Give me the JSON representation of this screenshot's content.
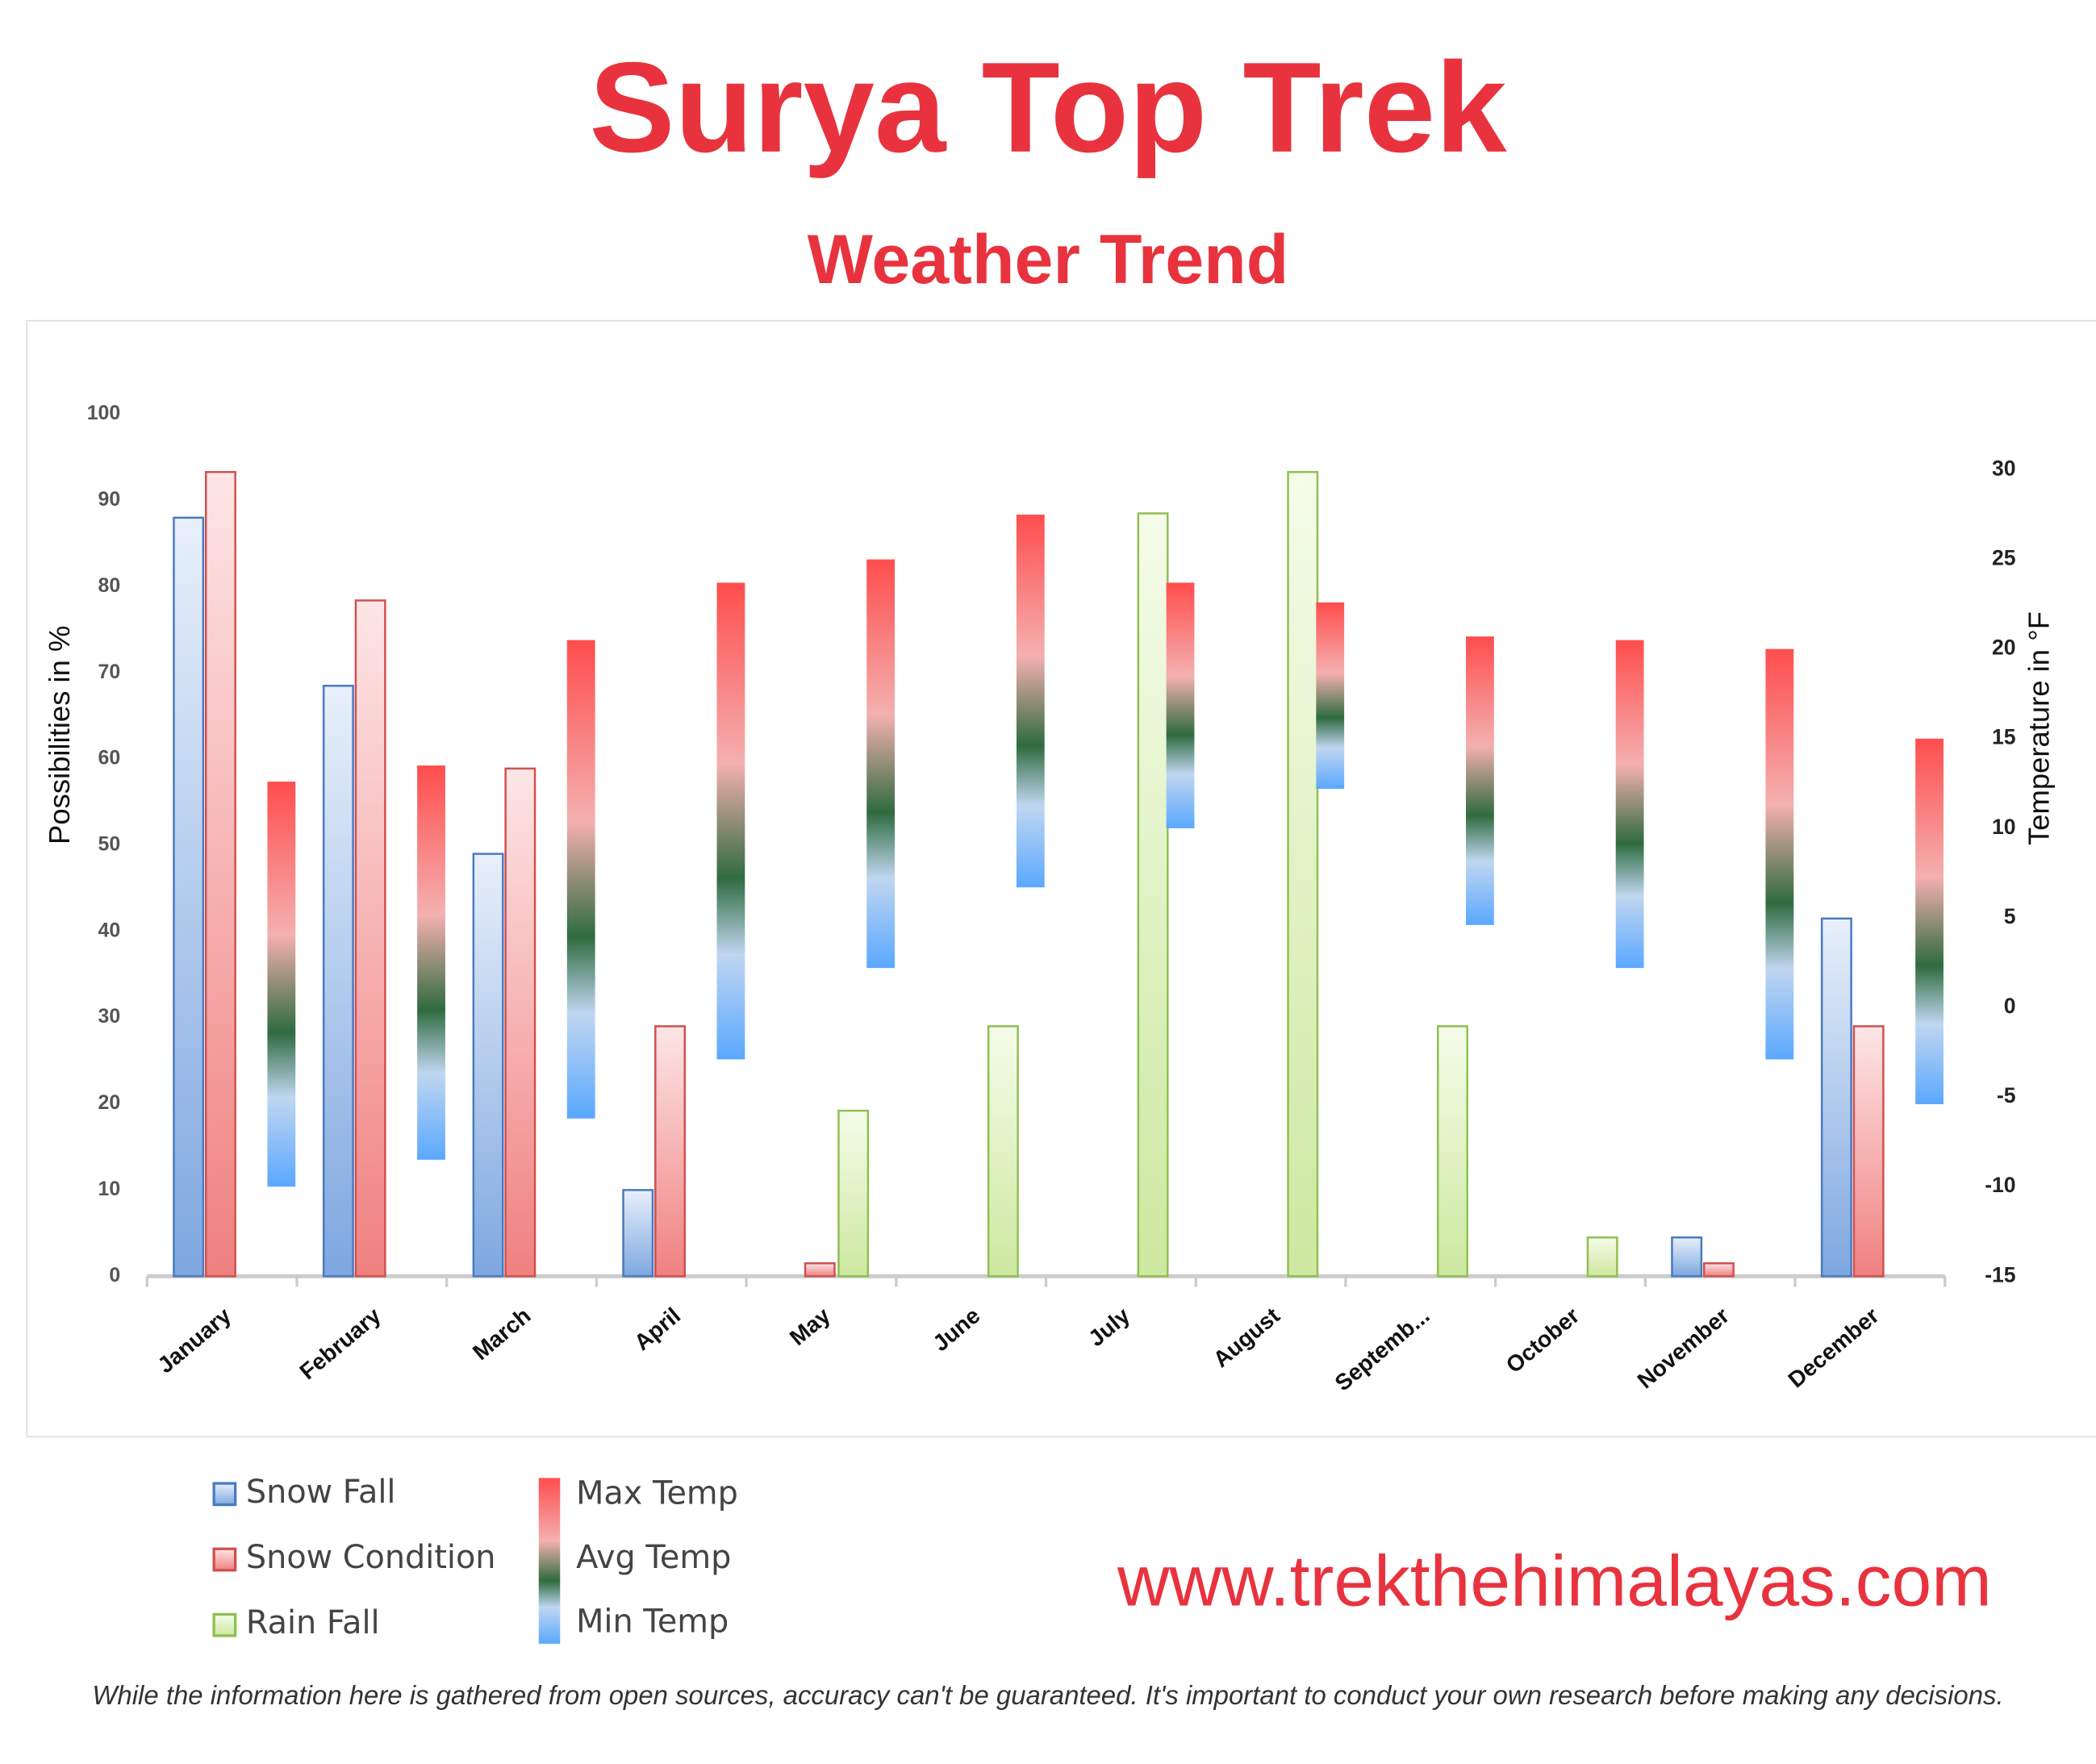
{
  "chart_data": {
    "type": "bar",
    "title": "Surya Top Trek",
    "subtitle": "Weather Trend",
    "y_label": "Possibilities in %",
    "y2_label": "Temperature in °F",
    "categories": [
      "January",
      "February",
      "March",
      "April",
      "May",
      "June",
      "July",
      "August",
      "Septemb...",
      "October",
      "November",
      "December"
    ],
    "series": [
      {
        "name": "Snow Fall",
        "color": "#4a7ac0",
        "values": [
          88,
          68.5,
          49,
          10,
          0,
          0,
          0,
          0,
          0,
          0,
          4.5,
          41.5
        ]
      },
      {
        "name": "Snow Condition",
        "color": "#d05050",
        "values": [
          93.3,
          78.4,
          58.9,
          29,
          1.5,
          0,
          0,
          0,
          0,
          0,
          1.5,
          29
        ]
      },
      {
        "name": "Rain Fall",
        "color": "#8fc050",
        "values": [
          0,
          0,
          0,
          0,
          19.2,
          29,
          88.5,
          93.3,
          29,
          4.5,
          0,
          0
        ]
      }
    ],
    "temperature_range": {
      "names": [
        "Max Temp",
        "Avg Temp",
        "Min Temp"
      ],
      "axis": "y2",
      "colors": [
        "#ff4d4d",
        "#2f6b3f",
        "#5aa8ff"
      ],
      "max": [
        12.6,
        13.5,
        20.5,
        23.7,
        25,
        27.5,
        23.7,
        22.6,
        20.7,
        20.5,
        20,
        15
      ],
      "min": [
        -10,
        -8.5,
        -6.2,
        -2.9,
        2.2,
        6.7,
        10,
        12.2,
        4.6,
        2.2,
        -2.9,
        -5.4
      ]
    },
    "ylim": [
      0,
      100
    ],
    "yticks": [
      0,
      10,
      20,
      30,
      40,
      50,
      60,
      70,
      80,
      90,
      100
    ],
    "y2lim": [
      -15,
      33.1
    ],
    "y2ticks": [
      -15,
      -10,
      -5,
      0,
      5,
      10,
      15,
      20,
      25,
      30
    ],
    "website": "www.trekthehimalayas.com",
    "disclaimer": "While the information here is gathered from open sources, accuracy can't be guaranteed. It's important to conduct your own research before making any decisions."
  }
}
